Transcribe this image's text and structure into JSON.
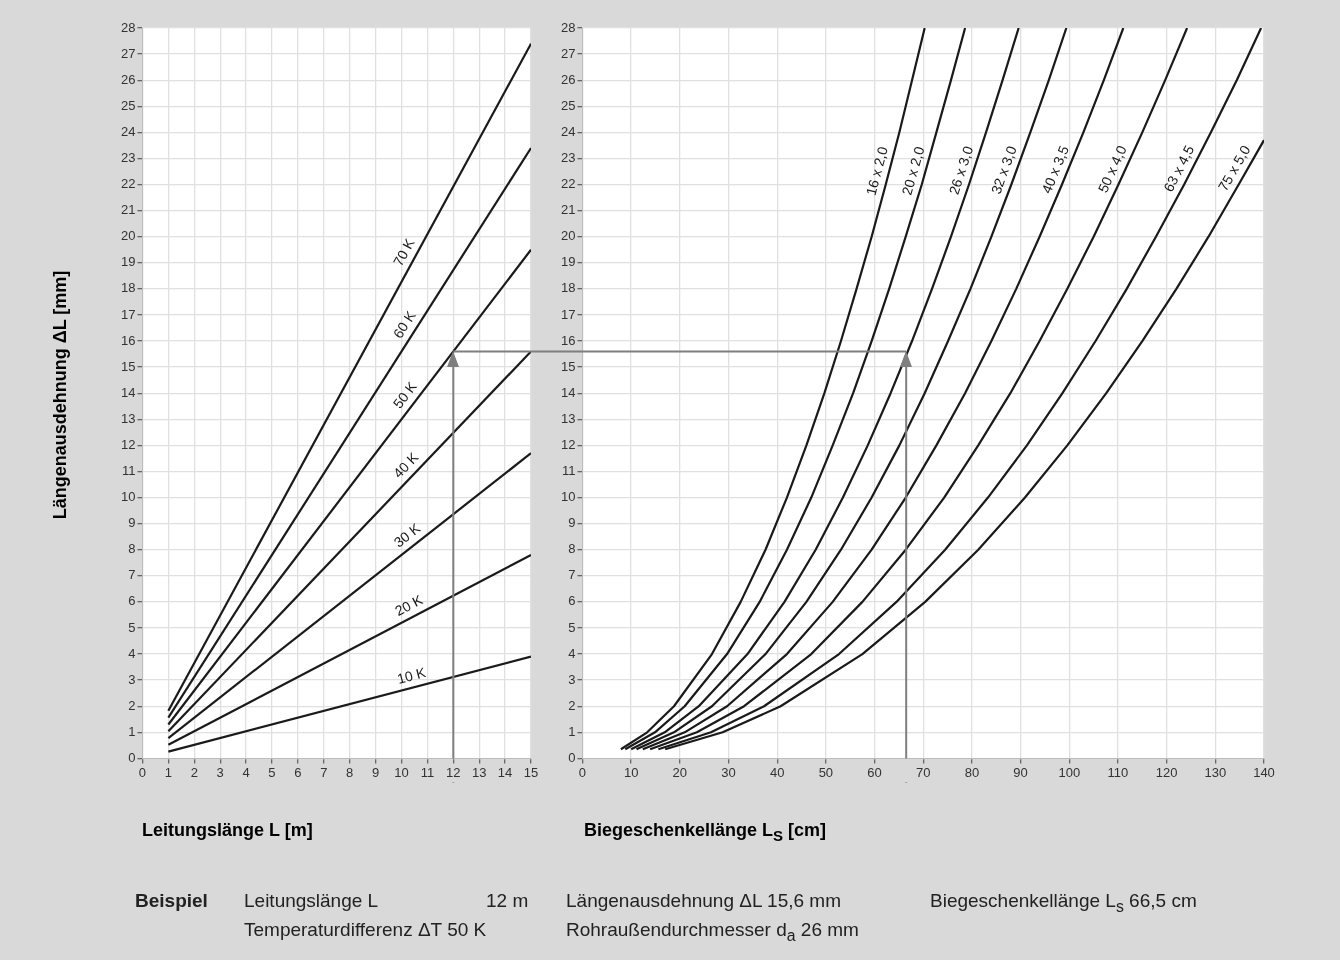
{
  "chart_data": [
    {
      "type": "line",
      "xlabel": "Leitungslänge L  [m]",
      "ylabel": "Längenausdehnung ΔL  [mm]",
      "xlim": [
        0,
        15
      ],
      "xticks": [
        0,
        1,
        2,
        3,
        4,
        5,
        6,
        7,
        8,
        9,
        10,
        11,
        12,
        13,
        14,
        15
      ],
      "ylim": [
        0,
        28
      ],
      "yticks": [
        0,
        1,
        2,
        3,
        4,
        5,
        6,
        7,
        8,
        9,
        10,
        11,
        12,
        13,
        14,
        15,
        16,
        17,
        18,
        19,
        20,
        21,
        22,
        23,
        24,
        25,
        26,
        27,
        28
      ],
      "grid": true,
      "marker": "none",
      "series": [
        {
          "name": "10 K",
          "color": "#1a1a1a",
          "x": [
            1,
            15
          ],
          "values": [
            0.26,
            3.9
          ]
        },
        {
          "name": "20 K",
          "color": "#1a1a1a",
          "x": [
            1,
            15
          ],
          "values": [
            0.52,
            7.8
          ]
        },
        {
          "name": "30 K",
          "color": "#1a1a1a",
          "x": [
            1,
            15
          ],
          "values": [
            0.78,
            11.7
          ]
        },
        {
          "name": "40 K",
          "color": "#1a1a1a",
          "x": [
            1,
            15
          ],
          "values": [
            1.04,
            15.6
          ]
        },
        {
          "name": "50 K",
          "color": "#1a1a1a",
          "x": [
            1,
            15
          ],
          "values": [
            1.3,
            19.5
          ]
        },
        {
          "name": "60 K",
          "color": "#1a1a1a",
          "x": [
            1,
            15
          ],
          "values": [
            1.56,
            23.4
          ]
        },
        {
          "name": "70 K",
          "color": "#1a1a1a",
          "x": [
            1,
            15
          ],
          "values": [
            1.83,
            27.4
          ]
        }
      ],
      "ref_lines": [
        {
          "axis": "x",
          "value": 12,
          "color": "#7f7f7f"
        },
        {
          "axis": "y",
          "value": 15.6,
          "color": "#7f7f7f"
        }
      ],
      "annotations": [
        "Beispiel",
        "Leitungslänge L",
        "12 m",
        "Längenausdehnung ΔL  15,6 mm",
        "Biegeschenkellänge L$_{s}$   66,5 cm",
        "Temperaturdifferenz ΔT  50 K",
        "Rohraußendurchmesser d$_{a}$  26 mm"
      ]
    },
    {
      "type": "line",
      "xlabel": "Biegeschenkellänge L$_{S}$  [cm]",
      "xlim": [
        0,
        140
      ],
      "xticks": [
        0,
        10,
        20,
        30,
        40,
        50,
        60,
        70,
        80,
        90,
        100,
        110,
        120,
        130,
        140
      ],
      "ylim": [
        0,
        28
      ],
      "yticks": [
        0,
        1,
        2,
        3,
        4,
        5,
        6,
        7,
        8,
        9,
        10,
        11,
        12,
        13,
        14,
        15,
        16,
        17,
        18,
        19,
        20,
        21,
        22,
        23,
        24,
        25,
        26,
        27,
        28
      ],
      "grid": true,
      "marker": "none",
      "series": [
        {
          "name": "16 x 2,0",
          "color": "#1a1a1a",
          "x": [
            7.9,
            13.3,
            18.8,
            26.6,
            32.5,
            37.6,
            42.0,
            46.0,
            49.7,
            53.1,
            56.3,
            59.4,
            62.3,
            65.1,
            67.7,
            70.3
          ],
          "values": [
            0.35,
            1,
            2,
            4,
            6,
            8,
            10,
            12,
            14,
            16,
            18,
            20,
            22,
            24,
            26,
            28
          ]
        },
        {
          "name": "20 x 2,0",
          "color": "#1a1a1a",
          "x": [
            8.8,
            14.9,
            21.0,
            29.7,
            36.4,
            42.0,
            47.0,
            51.4,
            55.6,
            59.4,
            63.0,
            66.4,
            69.7,
            72.7,
            75.7,
            78.6
          ],
          "values": [
            0.35,
            1,
            2,
            4,
            6,
            8,
            10,
            12,
            14,
            16,
            18,
            20,
            22,
            24,
            26,
            28
          ]
        },
        {
          "name": "26 x 3,0",
          "color": "#1a1a1a",
          "x": [
            10.0,
            16.9,
            23.9,
            33.9,
            41.5,
            47.9,
            53.5,
            58.6,
            63.3,
            67.7,
            71.8,
            75.7,
            79.4,
            82.9,
            86.3,
            89.6
          ],
          "values": [
            0.35,
            1,
            2,
            4,
            6,
            8,
            10,
            12,
            14,
            16,
            18,
            20,
            22,
            24,
            26,
            28
          ]
        },
        {
          "name": "32 x 3,0",
          "color": "#1a1a1a",
          "x": [
            11.1,
            18.8,
            26.6,
            37.6,
            46.0,
            53.1,
            59.4,
            65.1,
            70.3,
            75.1,
            79.7,
            84.0,
            88.1,
            92.0,
            95.8,
            99.4
          ],
          "values": [
            0.35,
            1,
            2,
            4,
            6,
            8,
            10,
            12,
            14,
            16,
            18,
            20,
            22,
            24,
            26,
            28
          ]
        },
        {
          "name": "40 x 3,5",
          "color": "#1a1a1a",
          "x": [
            12.4,
            21.0,
            29.7,
            42.0,
            51.4,
            59.4,
            66.4,
            72.7,
            78.6,
            84.0,
            89.1,
            93.9,
            98.5,
            102.9,
            107.1,
            111.1
          ],
          "values": [
            0.35,
            1,
            2,
            4,
            6,
            8,
            10,
            12,
            14,
            16,
            18,
            20,
            22,
            24,
            26,
            28
          ]
        },
        {
          "name": "50 x 4,0",
          "color": "#1a1a1a",
          "x": [
            13.9,
            23.5,
            33.2,
            47.0,
            57.5,
            66.4,
            74.3,
            81.3,
            87.9,
            93.9,
            99.6,
            105.0,
            110.1,
            115.0,
            119.7,
            124.2
          ],
          "values": [
            0.35,
            1,
            2,
            4,
            6,
            8,
            10,
            12,
            14,
            16,
            18,
            20,
            22,
            24,
            26,
            28
          ]
        },
        {
          "name": "63 x 4,5",
          "color": "#1a1a1a",
          "x": [
            15.6,
            26.4,
            37.3,
            52.7,
            64.5,
            74.5,
            83.3,
            91.3,
            98.6,
            105.4,
            111.8,
            117.8,
            123.6,
            129.1,
            134.4,
            139.4
          ],
          "values": [
            0.35,
            1,
            2,
            4,
            6,
            8,
            10,
            12,
            14,
            16,
            18,
            20,
            22,
            24,
            26,
            28
          ]
        },
        {
          "name": "75 x 5,0",
          "color": "#1a1a1a",
          "x": [
            17.0,
            28.8,
            40.7,
            57.5,
            70.4,
            81.3,
            90.9,
            99.6,
            107.6,
            115.0,
            122.0,
            128.6,
            134.8,
            140
          ],
          "values": [
            0.35,
            1,
            2,
            4,
            6,
            8,
            10,
            12,
            14,
            16,
            18,
            20,
            22,
            23.7
          ]
        }
      ],
      "ref_lines": [
        {
          "axis": "x",
          "value": 66.5,
          "color": "#7f7f7f"
        },
        {
          "axis": "y",
          "value": 15.6,
          "color": "#7f7f7f"
        }
      ]
    }
  ]
}
